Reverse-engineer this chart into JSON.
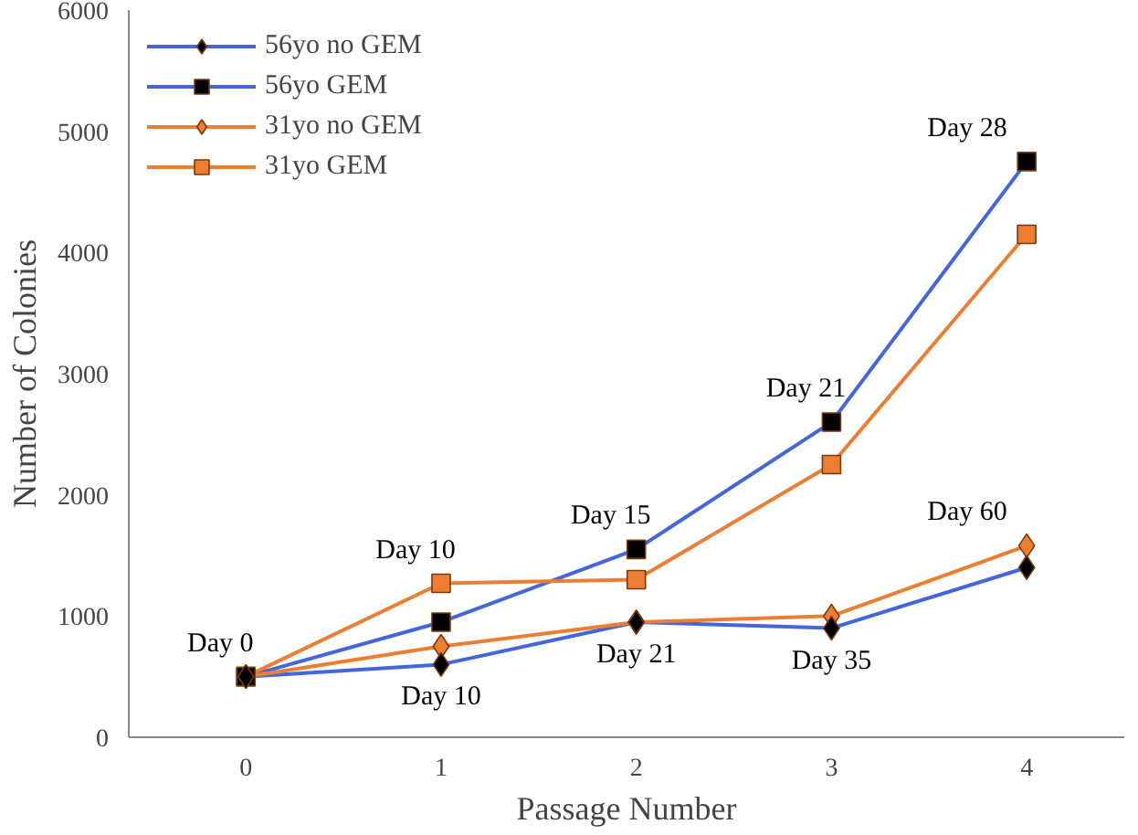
{
  "chart_data": {
    "type": "line",
    "xlabel": "Passage Number",
    "ylabel": "Number of Colonies",
    "x": [
      0,
      1,
      2,
      3,
      4
    ],
    "series": [
      {
        "name": "56yo no GEM",
        "color": "#4466dd",
        "colors": [
          "#000000",
          "#000000",
          "#000000",
          "#000000",
          "#000000"
        ],
        "marker": "diamond",
        "values": [
          500,
          600,
          950,
          900,
          1400
        ]
      },
      {
        "name": "56yo GEM",
        "color": "#4466dd",
        "colors": [
          "#000000",
          "#000000",
          "#000000",
          "#000000",
          "#000000"
        ],
        "marker": "square",
        "values": [
          500,
          950,
          1550,
          2600,
          4750
        ]
      },
      {
        "name": "31yo no GEM",
        "color": "#ed7d31",
        "colors": [
          "#ed7d31",
          "#ed7d31",
          "#ed7d31",
          "#ed7d31",
          "#ed7d31"
        ],
        "marker": "diamond",
        "values": [
          500,
          750,
          950,
          1000,
          1580
        ]
      },
      {
        "name": "31yo GEM",
        "color": "#ed7d31",
        "colors": [
          "#ed7d31",
          "#ed7d31",
          "#ed7d31",
          "#ed7d31",
          "#ed7d31"
        ],
        "marker": "square",
        "values": [
          500,
          1270,
          1300,
          2250,
          4150
        ]
      }
    ],
    "xlim": [
      -0.6,
      4.5
    ],
    "xticks": [
      0,
      1,
      2,
      3,
      4
    ],
    "ylim": [
      0,
      6000
    ],
    "yticks": [
      0,
      1000,
      2000,
      3000,
      4000,
      5000,
      6000
    ],
    "grid": false,
    "legend": "top left",
    "annotations": [
      {
        "text": "Day 0",
        "x": 0,
        "y": 500
      },
      {
        "text": "Day 10",
        "x": 1,
        "y": 1270
      },
      {
        "text": "Day 10",
        "x": 1,
        "y": 600
      },
      {
        "text": "Day 15",
        "x": 2,
        "y": 1550
      },
      {
        "text": "Day 21",
        "x": 2,
        "y": 950
      },
      {
        "text": "Day 21",
        "x": 3,
        "y": 2600
      },
      {
        "text": "Day 35",
        "x": 3,
        "y": 900
      },
      {
        "text": "Day 28",
        "x": 4,
        "y": 4750
      },
      {
        "text": "Day 60",
        "x": 4,
        "y": 1580
      }
    ]
  }
}
